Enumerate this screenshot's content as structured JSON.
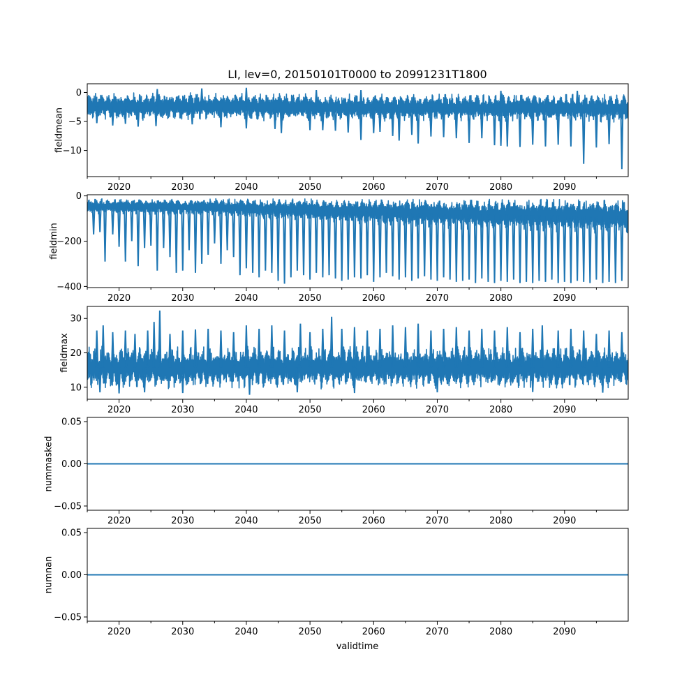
{
  "title": "LI, lev=0, 20150101T0000 to 20991231T1800",
  "xlabel": "validtime",
  "colors": {
    "series": "#1f77b4",
    "axes": "#000000",
    "background": "#ffffff"
  },
  "chart_data": [
    {
      "type": "line",
      "name": "fieldmean",
      "ylabel": "fieldmean",
      "xlim": [
        2015,
        2100
      ],
      "ylim": [
        -14.5,
        1.5
      ],
      "x_ticks": [
        2020,
        2030,
        2040,
        2050,
        2060,
        2070,
        2080,
        2090
      ],
      "x_tick_labels": [
        "2020",
        "2030",
        "2040",
        "2050",
        "2060",
        "2070",
        "2080",
        "2090"
      ],
      "y_ticks": [
        0,
        -5,
        -10
      ],
      "y_tick_labels": [
        "0",
        "−5",
        "−10"
      ],
      "band": {
        "low": [
          -4.8,
          -4.8,
          -5.0,
          -5.0,
          -5.2
        ],
        "high": [
          0.0,
          0.0,
          -0.2,
          -0.2,
          -0.3
        ],
        "at_years": [
          2015,
          2035,
          2055,
          2075,
          2100
        ]
      },
      "spikes": [
        {
          "x": 2016.5,
          "y": -5.3
        },
        {
          "x": 2019.0,
          "y": -5.7
        },
        {
          "x": 2021.0,
          "y": -5.4
        },
        {
          "x": 2023.0,
          "y": -5.9
        },
        {
          "x": 2025.8,
          "y": -5.8
        },
        {
          "x": 2031.5,
          "y": -5.5
        },
        {
          "x": 2036.0,
          "y": -6.0
        },
        {
          "x": 2040.0,
          "y": -6.2
        },
        {
          "x": 2044.5,
          "y": -6.3
        },
        {
          "x": 2045.5,
          "y": -7.0
        },
        {
          "x": 2050.0,
          "y": -6.5
        },
        {
          "x": 2052.0,
          "y": -6.5
        },
        {
          "x": 2054.0,
          "y": -6.6
        },
        {
          "x": 2056.0,
          "y": -6.9
        },
        {
          "x": 2058.0,
          "y": -8.2
        },
        {
          "x": 2060.0,
          "y": -7.0
        },
        {
          "x": 2061.0,
          "y": -6.8
        },
        {
          "x": 2063.0,
          "y": -7.5
        },
        {
          "x": 2064.0,
          "y": -8.3
        },
        {
          "x": 2066.0,
          "y": -7.3
        },
        {
          "x": 2067.0,
          "y": -8.8
        },
        {
          "x": 2069.0,
          "y": -7.6
        },
        {
          "x": 2071.0,
          "y": -7.7
        },
        {
          "x": 2073.0,
          "y": -7.9
        },
        {
          "x": 2075.0,
          "y": -8.7
        },
        {
          "x": 2077.0,
          "y": -7.9
        },
        {
          "x": 2079.0,
          "y": -9.1
        },
        {
          "x": 2080.0,
          "y": -9.2
        },
        {
          "x": 2081.0,
          "y": -9.3
        },
        {
          "x": 2083.0,
          "y": -9.4
        },
        {
          "x": 2085.0,
          "y": -9.0
        },
        {
          "x": 2087.0,
          "y": -9.3
        },
        {
          "x": 2089.0,
          "y": -9.0
        },
        {
          "x": 2091.0,
          "y": -9.3
        },
        {
          "x": 2093.0,
          "y": -12.3
        },
        {
          "x": 2095.0,
          "y": -9.5
        },
        {
          "x": 2097.0,
          "y": -8.9
        },
        {
          "x": 2099.0,
          "y": -13.2
        }
      ],
      "peaks": [
        {
          "x": 2026.0,
          "y": 0.6
        },
        {
          "x": 2033.0,
          "y": 0.7
        },
        {
          "x": 2040.0,
          "y": 0.8
        },
        {
          "x": 2051.0,
          "y": 0.4
        },
        {
          "x": 2058.0,
          "y": 0.4
        },
        {
          "x": 2080.0,
          "y": 0.3
        },
        {
          "x": 2092.0,
          "y": 0.3
        }
      ]
    },
    {
      "type": "line",
      "name": "fieldmin",
      "ylabel": "fieldmin",
      "xlim": [
        2015,
        2100
      ],
      "ylim": [
        -405,
        5
      ],
      "x_ticks": [
        2020,
        2030,
        2040,
        2050,
        2060,
        2070,
        2080,
        2090
      ],
      "x_tick_labels": [
        "2020",
        "2030",
        "2040",
        "2050",
        "2060",
        "2070",
        "2080",
        "2090"
      ],
      "y_ticks": [
        0,
        -200,
        -400
      ],
      "y_tick_labels": [
        "0",
        "−200",
        "−400"
      ],
      "band": {
        "low": [
          -80,
          -90,
          -120,
          -150,
          -170
        ],
        "high": [
          -12,
          -12,
          -12,
          -12,
          -12
        ],
        "at_years": [
          2015,
          2035,
          2055,
          2075,
          2100
        ]
      },
      "spikes": [
        {
          "x": 2016.0,
          "y": -170
        },
        {
          "x": 2017.0,
          "y": -160
        },
        {
          "x": 2017.8,
          "y": -290
        },
        {
          "x": 2019.0,
          "y": -170
        },
        {
          "x": 2020.0,
          "y": -225
        },
        {
          "x": 2021.0,
          "y": -290
        },
        {
          "x": 2022.0,
          "y": -200
        },
        {
          "x": 2023.0,
          "y": -310
        },
        {
          "x": 2024.0,
          "y": -230
        },
        {
          "x": 2025.0,
          "y": -220
        },
        {
          "x": 2026.0,
          "y": -330
        },
        {
          "x": 2027.0,
          "y": -230
        },
        {
          "x": 2028.0,
          "y": -270
        },
        {
          "x": 2029.0,
          "y": -340
        },
        {
          "x": 2030.0,
          "y": -330
        },
        {
          "x": 2031.0,
          "y": -240
        },
        {
          "x": 2032.0,
          "y": -340
        },
        {
          "x": 2033.0,
          "y": -300
        },
        {
          "x": 2034.0,
          "y": -260
        },
        {
          "x": 2035.0,
          "y": -210
        },
        {
          "x": 2036.0,
          "y": -300
        },
        {
          "x": 2037.0,
          "y": -240
        },
        {
          "x": 2038.0,
          "y": -270
        },
        {
          "x": 2039.0,
          "y": -350
        },
        {
          "x": 2040.0,
          "y": -320
        },
        {
          "x": 2041.0,
          "y": -340
        },
        {
          "x": 2042.0,
          "y": -360
        },
        {
          "x": 2043.0,
          "y": -330
        },
        {
          "x": 2044.0,
          "y": -340
        },
        {
          "x": 2045.0,
          "y": -375
        },
        {
          "x": 2046.0,
          "y": -388
        },
        {
          "x": 2047.0,
          "y": -360
        },
        {
          "x": 2048.0,
          "y": -330
        },
        {
          "x": 2049.0,
          "y": -350
        },
        {
          "x": 2050.0,
          "y": -370
        },
        {
          "x": 2051.0,
          "y": -340
        },
        {
          "x": 2052.0,
          "y": -360
        },
        {
          "x": 2053.0,
          "y": -350
        },
        {
          "x": 2054.0,
          "y": -365
        },
        {
          "x": 2055.0,
          "y": -375
        },
        {
          "x": 2056.0,
          "y": -370
        },
        {
          "x": 2057.0,
          "y": -360
        },
        {
          "x": 2058.0,
          "y": -365
        },
        {
          "x": 2059.0,
          "y": -350
        },
        {
          "x": 2060.0,
          "y": -380
        },
        {
          "x": 2061.0,
          "y": -360
        },
        {
          "x": 2062.0,
          "y": -340
        },
        {
          "x": 2063.0,
          "y": -355
        },
        {
          "x": 2064.0,
          "y": -370
        },
        {
          "x": 2065.0,
          "y": -360
        },
        {
          "x": 2066.0,
          "y": -375
        },
        {
          "x": 2067.0,
          "y": -365
        },
        {
          "x": 2068.0,
          "y": -355
        },
        {
          "x": 2069.0,
          "y": -370
        },
        {
          "x": 2070.0,
          "y": -375
        },
        {
          "x": 2071.0,
          "y": -360
        },
        {
          "x": 2072.0,
          "y": -370
        },
        {
          "x": 2073.0,
          "y": -380
        },
        {
          "x": 2074.0,
          "y": -375
        },
        {
          "x": 2075.0,
          "y": -370
        },
        {
          "x": 2076.0,
          "y": -385
        },
        {
          "x": 2077.0,
          "y": -365
        },
        {
          "x": 2078.0,
          "y": -380
        },
        {
          "x": 2079.0,
          "y": -385
        },
        {
          "x": 2080.0,
          "y": -375
        },
        {
          "x": 2081.0,
          "y": -380
        },
        {
          "x": 2082.0,
          "y": -370
        },
        {
          "x": 2083.0,
          "y": -385
        },
        {
          "x": 2084.0,
          "y": -380
        },
        {
          "x": 2085.0,
          "y": -385
        },
        {
          "x": 2086.0,
          "y": -375
        },
        {
          "x": 2087.0,
          "y": -380
        },
        {
          "x": 2088.0,
          "y": -370
        },
        {
          "x": 2089.0,
          "y": -385
        },
        {
          "x": 2090.0,
          "y": -380
        },
        {
          "x": 2091.0,
          "y": -385
        },
        {
          "x": 2092.0,
          "y": -375
        },
        {
          "x": 2093.0,
          "y": -380
        },
        {
          "x": 2094.0,
          "y": -385
        },
        {
          "x": 2095.0,
          "y": -370
        },
        {
          "x": 2096.0,
          "y": -385
        },
        {
          "x": 2097.0,
          "y": -380
        },
        {
          "x": 2098.0,
          "y": -385
        },
        {
          "x": 2099.0,
          "y": -375
        }
      ],
      "peaks": []
    },
    {
      "type": "line",
      "name": "fieldmax",
      "ylabel": "fieldmax",
      "xlim": [
        2015,
        2100
      ],
      "ylim": [
        6.5,
        33.5
      ],
      "x_ticks": [
        2020,
        2030,
        2040,
        2050,
        2060,
        2070,
        2080,
        2090
      ],
      "x_tick_labels": [
        "2020",
        "2030",
        "2040",
        "2050",
        "2060",
        "2070",
        "2080",
        "2090"
      ],
      "y_ticks": [
        30,
        20,
        10
      ],
      "y_tick_labels": [
        "30",
        "20",
        "10"
      ],
      "band": {
        "low": [
          9.5,
          9.5,
          9.5,
          9.5,
          9.5
        ],
        "high": [
          22.0,
          22.0,
          22.0,
          22.0,
          22.0
        ],
        "at_years": [
          2015,
          2035,
          2055,
          2075,
          2100
        ]
      },
      "spikes": [
        {
          "x": 2017.0,
          "y": 8.5
        },
        {
          "x": 2020.0,
          "y": 8.2
        },
        {
          "x": 2024.0,
          "y": 8.5
        },
        {
          "x": 2030.0,
          "y": 8.3
        },
        {
          "x": 2040.5,
          "y": 7.8
        },
        {
          "x": 2048.0,
          "y": 8.5
        },
        {
          "x": 2057.0,
          "y": 8.3
        },
        {
          "x": 2070.0,
          "y": 8.5
        },
        {
          "x": 2085.0,
          "y": 8.6
        },
        {
          "x": 2096.0,
          "y": 8.4
        }
      ],
      "peaks": [
        {
          "x": 2016.5,
          "y": 26.5
        },
        {
          "x": 2017.5,
          "y": 28.0
        },
        {
          "x": 2019.0,
          "y": 26.0
        },
        {
          "x": 2021.0,
          "y": 26.5
        },
        {
          "x": 2022.5,
          "y": 25.5
        },
        {
          "x": 2024.5,
          "y": 26.5
        },
        {
          "x": 2025.5,
          "y": 29.0
        },
        {
          "x": 2026.4,
          "y": 32.3
        },
        {
          "x": 2028.0,
          "y": 25.5
        },
        {
          "x": 2030.0,
          "y": 26.5
        },
        {
          "x": 2032.0,
          "y": 26.8
        },
        {
          "x": 2034.0,
          "y": 27.0
        },
        {
          "x": 2036.0,
          "y": 26.5
        },
        {
          "x": 2038.0,
          "y": 26.0
        },
        {
          "x": 2040.0,
          "y": 28.0
        },
        {
          "x": 2042.0,
          "y": 27.0
        },
        {
          "x": 2044.0,
          "y": 28.0
        },
        {
          "x": 2046.0,
          "y": 26.5
        },
        {
          "x": 2048.5,
          "y": 28.5
        },
        {
          "x": 2050.0,
          "y": 26.0
        },
        {
          "x": 2052.0,
          "y": 27.0
        },
        {
          "x": 2053.4,
          "y": 30.5
        },
        {
          "x": 2055.0,
          "y": 27.0
        },
        {
          "x": 2057.0,
          "y": 27.5
        },
        {
          "x": 2059.0,
          "y": 26.5
        },
        {
          "x": 2061.0,
          "y": 27.0
        },
        {
          "x": 2063.0,
          "y": 28.0
        },
        {
          "x": 2065.0,
          "y": 27.5
        },
        {
          "x": 2067.0,
          "y": 28.5
        },
        {
          "x": 2069.0,
          "y": 26.5
        },
        {
          "x": 2071.0,
          "y": 27.0
        },
        {
          "x": 2073.0,
          "y": 27.5
        },
        {
          "x": 2075.0,
          "y": 26.5
        },
        {
          "x": 2077.0,
          "y": 27.0
        },
        {
          "x": 2079.0,
          "y": 26.5
        },
        {
          "x": 2081.0,
          "y": 27.5
        },
        {
          "x": 2083.0,
          "y": 26.0
        },
        {
          "x": 2085.0,
          "y": 27.0
        },
        {
          "x": 2086.5,
          "y": 28.0
        },
        {
          "x": 2089.0,
          "y": 26.5
        },
        {
          "x": 2091.0,
          "y": 27.0
        },
        {
          "x": 2093.0,
          "y": 26.5
        },
        {
          "x": 2095.0,
          "y": 25.5
        },
        {
          "x": 2097.0,
          "y": 26.5
        },
        {
          "x": 2099.0,
          "y": 26.0
        }
      ]
    },
    {
      "type": "line",
      "name": "nummasked",
      "ylabel": "nummasked",
      "xlim": [
        2015,
        2100
      ],
      "ylim": [
        -0.055,
        0.055
      ],
      "x_ticks": [
        2020,
        2030,
        2040,
        2050,
        2060,
        2070,
        2080,
        2090
      ],
      "x_tick_labels": [
        "2020",
        "2030",
        "2040",
        "2050",
        "2060",
        "2070",
        "2080",
        "2090"
      ],
      "y_ticks": [
        0.05,
        0.0,
        -0.05
      ],
      "y_tick_labels": [
        "0.05",
        "0.00",
        "−0.05"
      ],
      "constant_value": 0.0
    },
    {
      "type": "line",
      "name": "numnan",
      "ylabel": "numnan",
      "xlim": [
        2015,
        2100
      ],
      "ylim": [
        -0.055,
        0.055
      ],
      "x_ticks": [
        2020,
        2030,
        2040,
        2050,
        2060,
        2070,
        2080,
        2090
      ],
      "x_tick_labels": [
        "2020",
        "2030",
        "2040",
        "2050",
        "2060",
        "2070",
        "2080",
        "2090"
      ],
      "y_ticks": [
        0.05,
        0.0,
        -0.05
      ],
      "y_tick_labels": [
        "0.05",
        "0.00",
        "−0.05"
      ],
      "constant_value": 0.0
    }
  ]
}
